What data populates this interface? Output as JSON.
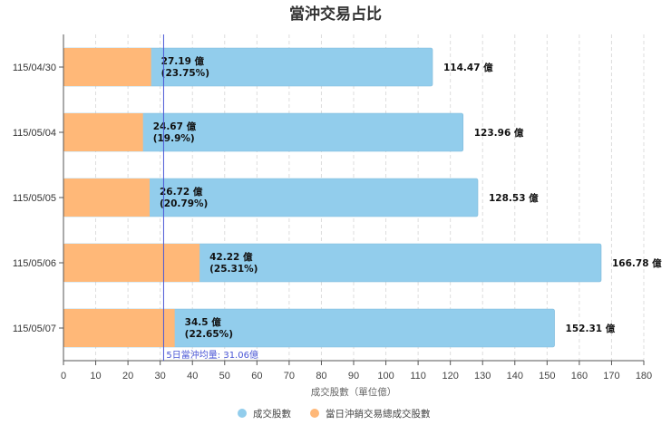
{
  "chart_data": {
    "type": "bar",
    "orientation": "horizontal",
    "stacked": false,
    "title": "當沖交易占比",
    "xlabel": "成交股數（單位億）",
    "ylabel": "",
    "xlim": [
      0,
      180
    ],
    "xticks": [
      0,
      10,
      20,
      30,
      40,
      50,
      60,
      70,
      80,
      90,
      100,
      110,
      120,
      130,
      140,
      150,
      160,
      170,
      180
    ],
    "grid": "vertical-dashed",
    "legend_position": "bottom",
    "categories": [
      "115/04/30",
      "115/05/04",
      "115/05/05",
      "115/05/06",
      "115/05/07"
    ],
    "series": [
      {
        "name": "成交股數",
        "color": "#92cdec",
        "values": [
          114.47,
          123.96,
          128.53,
          166.78,
          152.31
        ],
        "labels": [
          "114.47 億",
          "123.96 億",
          "128.53 億",
          "166.78 億",
          "152.31 億"
        ]
      },
      {
        "name": "當日沖銷交易總成交股數",
        "color": "#ffb878",
        "values": [
          27.19,
          24.67,
          26.72,
          42.22,
          34.5
        ],
        "labels": [
          "27.19 億",
          "24.67 億",
          "26.72 億",
          "42.22 億",
          "34.5 億"
        ],
        "pct_labels": [
          "(23.75%)",
          "(19.9%)",
          "(20.79%)",
          "(25.31%)",
          "(22.65%)"
        ]
      }
    ],
    "reference_line": {
      "value": 31.06,
      "label": "5日當沖均量: 31.06億",
      "color": "#4b57d6"
    }
  }
}
